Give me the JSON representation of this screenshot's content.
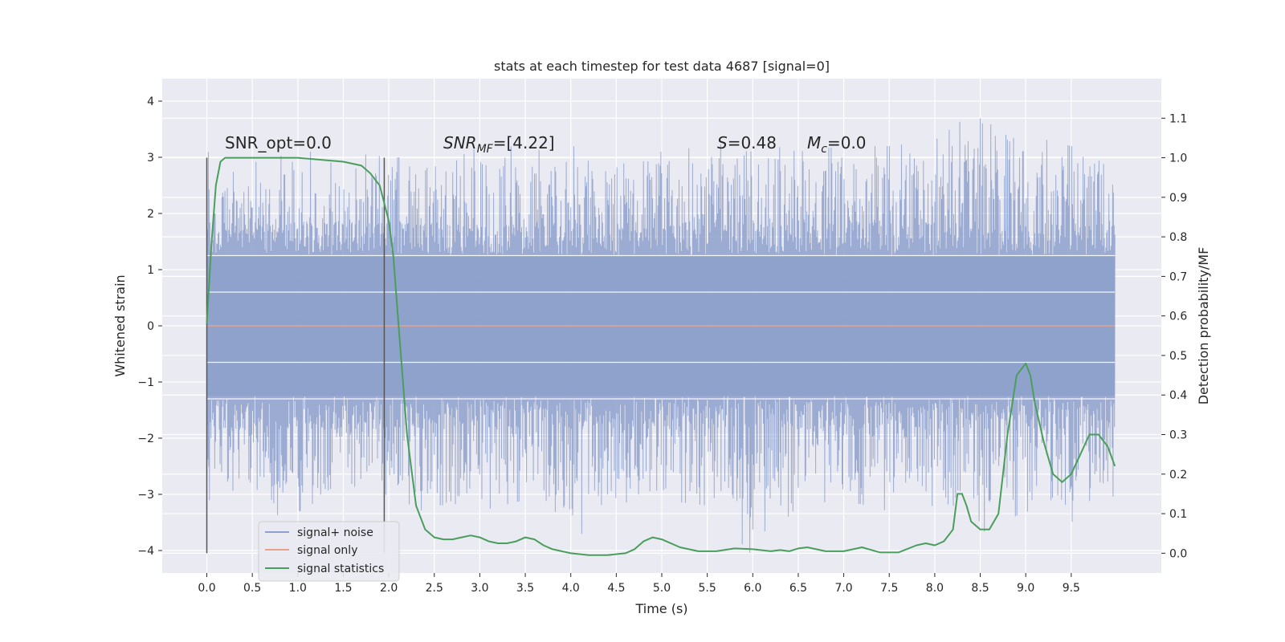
{
  "chart_data": {
    "type": "line",
    "title": "stats at each timestep for test data 4687 [signal=0]",
    "xlabel": "Time (s)",
    "ylabel": "Whitened strain",
    "y2label": "Detection probability/MF",
    "xlim": [
      -0.49,
      10.49
    ],
    "ylim": [
      -4.4,
      4.4
    ],
    "y2lim": [
      -0.05,
      1.2
    ],
    "grid": true,
    "legend_position": "lower-left",
    "xticks": [
      "0.0",
      "0.5",
      "1.0",
      "1.5",
      "2.0",
      "2.5",
      "3.0",
      "3.5",
      "4.0",
      "4.5",
      "5.0",
      "5.5",
      "6.0",
      "6.5",
      "7.0",
      "7.5",
      "8.0",
      "8.5",
      "9.0",
      "9.5"
    ],
    "yticks": [
      "4",
      "3",
      "2",
      "1",
      "0",
      "−1",
      "−2",
      "−3",
      "−4"
    ],
    "y2ticks": [
      "1.1",
      "1.0",
      "0.9",
      "0.8",
      "0.7",
      "0.6",
      "0.5",
      "0.4",
      "0.3",
      "0.2",
      "0.1",
      "0.0"
    ],
    "annotations": {
      "snr_opt": "SNR_opt=0.0",
      "snr_mf": {
        "main": "SNR",
        "sub": "MF",
        "rest": "=[4.22]"
      },
      "s_value": {
        "main": "S",
        "rest": "=0.48"
      },
      "mc_value": {
        "main": "M",
        "sub": "c",
        "rest": "=0.0"
      }
    },
    "window_markers_x": [
      0.0,
      1.95
    ],
    "series": [
      {
        "name": "signal+ noise",
        "color": "#8da0cb",
        "axis": "left",
        "envelope": {
          "x": [
            0.0,
            0.5,
            1.0,
            1.5,
            2.0,
            2.5,
            3.0,
            3.5,
            4.0,
            4.5,
            5.0,
            5.5,
            6.0,
            6.5,
            7.0,
            7.5,
            8.0,
            8.5,
            9.0,
            9.5,
            10.0
          ],
          "upper": [
            3.1,
            2.9,
            3.1,
            3.1,
            3.0,
            3.0,
            3.4,
            3.1,
            3.2,
            3.1,
            3.1,
            3.2,
            3.3,
            3.1,
            3.2,
            3.2,
            3.3,
            3.9,
            3.4,
            3.2,
            3.1
          ],
          "lower": [
            -3.1,
            -3.2,
            -3.5,
            -3.1,
            -3.0,
            -3.4,
            -3.3,
            -3.1,
            -3.8,
            -3.4,
            -3.1,
            -3.2,
            -4.1,
            -3.2,
            -3.1,
            -3.3,
            -3.2,
            -3.7,
            -3.3,
            -3.5,
            -3.0
          ]
        }
      },
      {
        "name": "signal only",
        "color": "#e8a28a",
        "axis": "left",
        "x": [
          0.0,
          9.98
        ],
        "y": [
          0.0,
          0.0
        ]
      },
      {
        "name": "signal statistics",
        "color": "#4a9e5c",
        "axis": "right",
        "x": [
          0.0,
          0.05,
          0.1,
          0.15,
          0.2,
          0.3,
          0.5,
          1.0,
          1.5,
          1.7,
          1.8,
          1.9,
          2.0,
          2.05,
          2.1,
          2.2,
          2.3,
          2.4,
          2.5,
          2.6,
          2.7,
          2.8,
          2.9,
          3.0,
          3.1,
          3.2,
          3.3,
          3.4,
          3.5,
          3.6,
          3.7,
          3.8,
          3.9,
          4.0,
          4.2,
          4.4,
          4.6,
          4.7,
          4.8,
          4.9,
          5.0,
          5.2,
          5.4,
          5.6,
          5.8,
          6.0,
          6.2,
          6.3,
          6.4,
          6.5,
          6.6,
          6.8,
          7.0,
          7.2,
          7.4,
          7.6,
          7.8,
          7.9,
          8.0,
          8.1,
          8.2,
          8.25,
          8.3,
          8.35,
          8.4,
          8.5,
          8.6,
          8.7,
          8.8,
          8.9,
          9.0,
          9.05,
          9.1,
          9.2,
          9.3,
          9.4,
          9.5,
          9.6,
          9.7,
          9.8,
          9.9,
          9.98
        ],
        "y": [
          0.58,
          0.78,
          0.93,
          0.99,
          1.0,
          1.0,
          1.0,
          1.0,
          0.99,
          0.98,
          0.96,
          0.93,
          0.84,
          0.75,
          0.6,
          0.3,
          0.12,
          0.06,
          0.04,
          0.035,
          0.035,
          0.04,
          0.045,
          0.04,
          0.03,
          0.025,
          0.025,
          0.03,
          0.04,
          0.035,
          0.02,
          0.01,
          0.005,
          0.0,
          -0.005,
          -0.005,
          0.0,
          0.01,
          0.03,
          0.04,
          0.035,
          0.015,
          0.005,
          0.005,
          0.012,
          0.01,
          0.005,
          0.008,
          0.005,
          0.012,
          0.015,
          0.005,
          0.005,
          0.015,
          0.002,
          0.002,
          0.02,
          0.025,
          0.02,
          0.03,
          0.06,
          0.15,
          0.15,
          0.12,
          0.08,
          0.06,
          0.06,
          0.1,
          0.3,
          0.45,
          0.48,
          0.45,
          0.38,
          0.28,
          0.2,
          0.18,
          0.2,
          0.25,
          0.3,
          0.3,
          0.27,
          0.22
        ]
      }
    ]
  }
}
